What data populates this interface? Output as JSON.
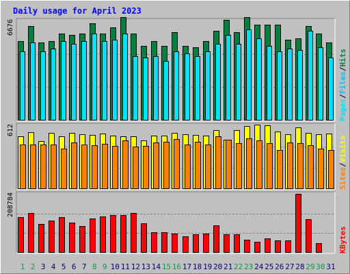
{
  "title": "Daily usage for April 2023",
  "colors": {
    "background": "#c0c0c0",
    "title": "#0000ff",
    "hits": "#008040",
    "files": "#00c0ff",
    "pages": "#00e0ff",
    "visits": "#ffff00",
    "sites": "#ff8000",
    "kbytes": "#ff0000",
    "weekday_label": "#000080",
    "weekend_label": "#00a040"
  },
  "chart_data": {
    "type": "bar",
    "x": [
      "1",
      "2",
      "3",
      "4",
      "5",
      "6",
      "7",
      "8",
      "9",
      "10",
      "11",
      "12",
      "13",
      "14",
      "15",
      "16",
      "17",
      "18",
      "19",
      "20",
      "21",
      "22",
      "23",
      "24",
      "25",
      "26",
      "27",
      "28",
      "29",
      "30",
      "31"
    ],
    "weekend_days": [
      1,
      2,
      8,
      9,
      15,
      16,
      22,
      23,
      29,
      30
    ],
    "panels": [
      {
        "id": "hits-files-pages",
        "max_label": "6676",
        "ymax": 6676,
        "legend": [
          "Pages",
          "Files",
          "Hits"
        ],
        "series": [
          {
            "name": "Hits",
            "color": "hits",
            "values": [
              5300,
              6300,
              5200,
              5300,
              5800,
              5700,
              5800,
              6500,
              5800,
              6200,
              6900,
              5800,
              5000,
              5300,
              5000,
              5900,
              5000,
              4900,
              5300,
              6000,
              6700,
              5900,
              6900,
              6400,
              6400,
              6400,
              5400,
              5500,
              6300,
              5800,
              5200
            ]
          },
          {
            "name": "Files",
            "color": "files",
            "values": [
              4600,
              5200,
              4600,
              4800,
              5300,
              5100,
              5300,
              5800,
              5300,
              5400,
              5800,
              4300,
              4200,
              4300,
              4000,
              4600,
              4500,
              4300,
              4600,
              5100,
              5700,
              5100,
              6100,
              5500,
              5000,
              4600,
              4800,
              4700,
              6000,
              4900,
              4200
            ]
          },
          {
            "name": "Pages",
            "color": "pages",
            "values": [
              4600,
              5200,
              4600,
              4800,
              5300,
              5100,
              5300,
              5800,
              5300,
              5400,
              5800,
              4300,
              4200,
              4300,
              4000,
              4600,
              4500,
              4300,
              4600,
              5100,
              5700,
              5100,
              6100,
              5500,
              5000,
              4600,
              4800,
              4700,
              6000,
              4900,
              4200
            ]
          }
        ]
      },
      {
        "id": "visits-sites",
        "max_label": "612",
        "ymax": 612,
        "legend": [
          "Sites",
          "Visits"
        ],
        "series": [
          {
            "name": "Visits",
            "color": "visits",
            "values": [
              510,
              545,
              460,
              540,
              510,
              540,
              525,
              520,
              530,
              515,
              510,
              505,
              470,
              515,
              515,
              540,
              525,
              520,
              515,
              565,
              475,
              565,
              605,
              620,
              610,
              550,
              525,
              590,
              540,
              525,
              535
            ]
          },
          {
            "name": "Sites",
            "color": "sites",
            "values": [
              425,
              430,
              430,
              430,
              390,
              445,
              425,
              420,
              435,
              415,
              465,
              405,
              415,
              445,
              455,
              480,
              430,
              455,
              430,
              505,
              475,
              440,
              485,
              470,
              440,
              375,
              445,
              440,
              420,
              385,
              375
            ]
          }
        ]
      },
      {
        "id": "kbytes",
        "max_label": "208784",
        "ymax": 208784,
        "legend": [
          "KBytes"
        ],
        "series": [
          {
            "name": "KBytes",
            "color": "kbytes",
            "values": [
              126000,
              140000,
              101000,
              115000,
              127000,
              108000,
              94000,
              122000,
              128000,
              134000,
              134000,
              141000,
              105000,
              73000,
              74000,
              69000,
              58000,
              65000,
              68000,
              98000,
              66000,
              66000,
              47000,
              38000,
              50000,
              44000,
              44000,
              208784,
              120000,
              33000,
              0
            ]
          }
        ]
      }
    ]
  }
}
